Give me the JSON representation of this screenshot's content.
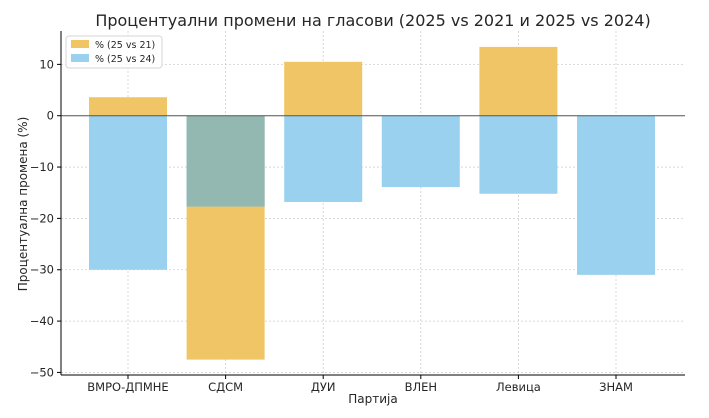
{
  "chart_data": {
    "type": "bar",
    "title": "Процентуални промени на гласови (2025 vs 2021 и 2025 vs 2024)",
    "xlabel": "Партија",
    "ylabel": "Процентуална промена (%)",
    "categories": [
      "ВМРО-ДПМНЕ",
      "СДСМ",
      "ДУИ",
      "ВЛЕН",
      "Левица",
      "ЗНАМ"
    ],
    "series": [
      {
        "name": "% (25 vs 21)",
        "color": "#f0c566",
        "values": [
          3.6,
          -47.5,
          10.5,
          null,
          13.4,
          null
        ]
      },
      {
        "name": "% (25 vs 24)",
        "color": "#9ad1ee",
        "values": [
          -30.0,
          -17.7,
          -16.8,
          -13.9,
          -15.2,
          -31.0
        ]
      }
    ],
    "overlap_color": "#93b8b1",
    "ylim": [
      -50.5,
      16.5
    ],
    "yticks": [
      10,
      0,
      -10,
      -20,
      -30,
      -40,
      -50
    ],
    "ytick_labels": [
      "10",
      "0",
      "−10",
      "−20",
      "−30",
      "−40",
      "−50"
    ],
    "grid": true,
    "legend_position": "top-left"
  }
}
